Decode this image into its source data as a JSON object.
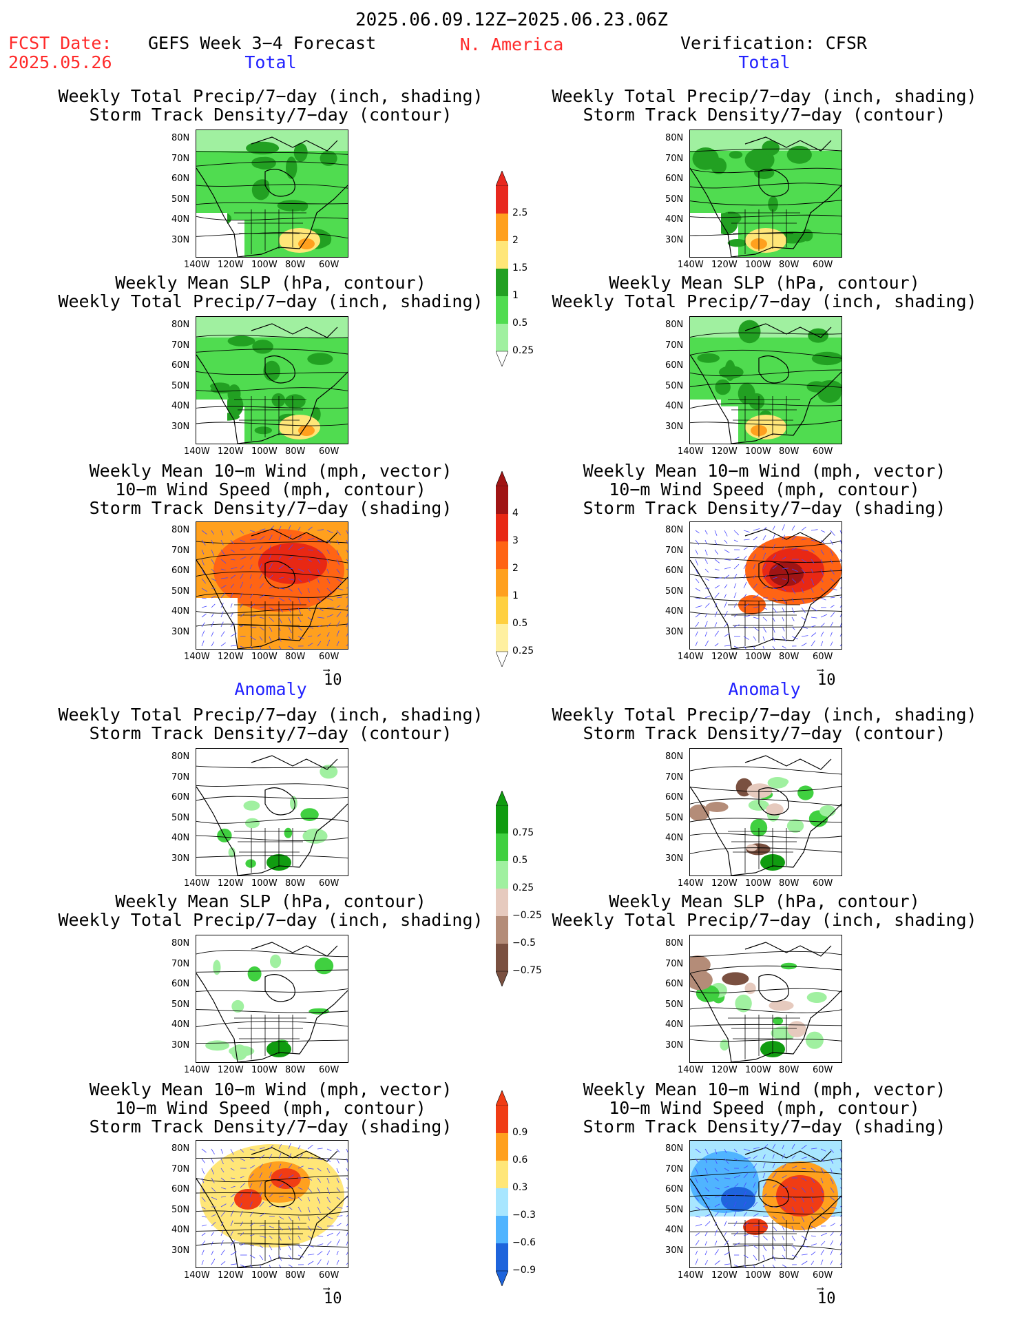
{
  "header": {
    "date_range": "2025.06.09.12Z−2025.06.23.06Z",
    "fcst_label": "FCST Date:",
    "fcst_date": "2025.05.26",
    "forecast_title": "GEFS Week 3−4 Forecast",
    "region": "N. America",
    "verification": "Verification: CFSR"
  },
  "sections": {
    "total": "Total",
    "anomaly": "Anomaly"
  },
  "panel_titles": {
    "precip_storm": [
      "Weekly Total Precip/7−day (inch, shading)",
      "Storm Track Density/7−day (contour)"
    ],
    "slp_precip": [
      "Weekly Mean SLP (hPa, contour)",
      "Weekly Total Precip/7−day (inch, shading)"
    ],
    "wind_storm": [
      "Weekly Mean 10−m Wind (mph, vector)",
      "10−m Wind Speed (mph, contour)",
      "Storm Track Density/7−day (shading)"
    ]
  },
  "axes": {
    "lat_labels": [
      "80N",
      "70N",
      "60N",
      "50N",
      "40N",
      "30N"
    ],
    "lon_labels": [
      "140W",
      "120W",
      "100W",
      "80W",
      "60W"
    ]
  },
  "vector_reference": "10",
  "colorbars": {
    "precip_total": {
      "labels": [
        "2.5",
        "2",
        "1.5",
        "1",
        "0.5",
        "0.25"
      ],
      "colors": [
        "#e8281e",
        "#ffa01e",
        "#ffe678",
        "#22a022",
        "#50dc50",
        "#a0f0a0"
      ]
    },
    "storm_total": {
      "labels": [
        "4",
        "3",
        "2",
        "1",
        "0.5",
        "0.25"
      ],
      "colors": [
        "#a01414",
        "#e82814",
        "#ff6414",
        "#ffa01e",
        "#ffd040",
        "#fff0a0"
      ]
    },
    "precip_anom": {
      "labels": [
        "0.75",
        "0.5",
        "0.25",
        "−0.25",
        "−0.5",
        "−0.75"
      ],
      "colors": [
        "#109c10",
        "#40d040",
        "#a0f0a0",
        "#e6cabe",
        "#b48c78",
        "#7a5040"
      ]
    },
    "storm_anom": {
      "labels": [
        "0.9",
        "0.6",
        "0.3",
        "−0.3",
        "−0.6",
        "−0.9"
      ],
      "colors": [
        "#f03c14",
        "#ffa01e",
        "#ffe678",
        "#a8e6ff",
        "#50b4ff",
        "#1e64dc"
      ]
    }
  },
  "colors": {
    "header_red": "#ff2a2a",
    "section_blue": "#2222ff",
    "vector_blue": "#4646ff"
  }
}
